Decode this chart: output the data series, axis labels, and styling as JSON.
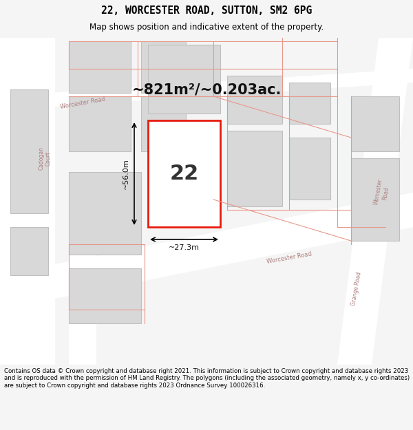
{
  "title_line1": "22, WORCESTER ROAD, SUTTON, SM2 6PG",
  "title_line2": "Map shows position and indicative extent of the property.",
  "area_text": "~821m²/~0.203ac.",
  "label_number": "22",
  "dim_width": "~27.3m",
  "dim_height": "~56.0m",
  "footer_text": "Contains OS data © Crown copyright and database right 2021. This information is subject to Crown copyright and database rights 2023 and is reproduced with the permission of HM Land Registry. The polygons (including the associated geometry, namely x, y co-ordinates) are subject to Crown copyright and database rights 2023 Ordnance Survey 100026316.",
  "bg_color": "#f5f5f5",
  "map_bg": "#f0f0f0",
  "road_color": "#ffffff",
  "building_fill": "#d8d8d8",
  "building_edge": "#c0c0c0",
  "highlight_fill": "#ffffff",
  "highlight_edge": "#e8190c",
  "road_label_color": "#c0a0a0",
  "title_bg": "#ffffff",
  "footer_bg": "#ffffff"
}
